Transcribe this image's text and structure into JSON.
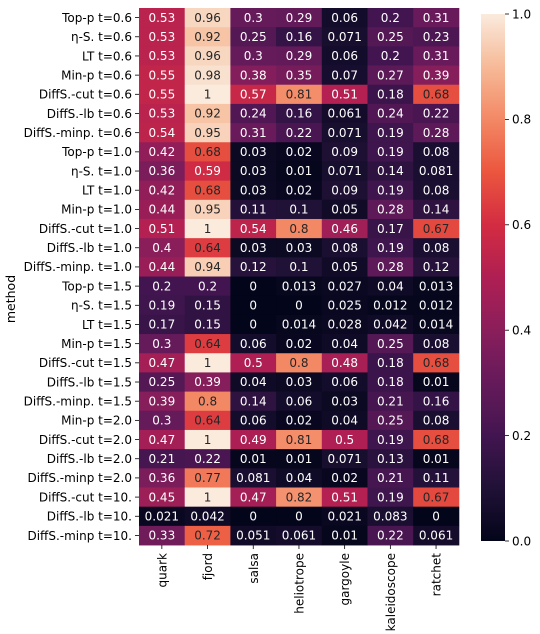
{
  "chart_data": {
    "type": "heatmap",
    "title": "",
    "xlabel": "",
    "ylabel": "method",
    "rows": [
      "Top-p t=0.6",
      "η-S. t=0.6",
      "LT t=0.6",
      "Min-p t=0.6",
      "DiffS.-cut t=0.6",
      "DiffS.-lb t=0.6",
      "DiffS.-minp. t=0.6",
      "Top-p t=1.0",
      "η-S. t=1.0",
      "LT t=1.0",
      "Min-p t=1.0",
      "DiffS.-cut t=1.0",
      "DiffS.-lb t=1.0",
      "DiffS.-minp. t=1.0",
      "Top-p t=1.5",
      "η-S. t=1.5",
      "LT t=1.5",
      "Min-p t=1.5",
      "DiffS.-cut t=1.5",
      "DiffS.-lb t=1.5",
      "DiffS.-minp. t=1.5",
      "Min-p t=2.0",
      "DiffS.-cut t=2.0",
      "DiffS.-lb t=2.0",
      "DiffS.-minp t=2.0",
      "DiffS.-cut t=10.",
      "DiffS.-lb t=10.",
      "DiffS.-minp t=10."
    ],
    "columns": [
      "quark",
      "fjord",
      "salsa",
      "heliotrope",
      "gargoyle",
      "kaleidoscope",
      "ratchet"
    ],
    "values": [
      [
        0.53,
        0.96,
        0.3,
        0.29,
        0.06,
        0.2,
        0.31
      ],
      [
        0.53,
        0.92,
        0.25,
        0.16,
        0.071,
        0.25,
        0.23
      ],
      [
        0.53,
        0.96,
        0.3,
        0.29,
        0.06,
        0.2,
        0.31
      ],
      [
        0.55,
        0.98,
        0.38,
        0.35,
        0.07,
        0.27,
        0.39
      ],
      [
        0.55,
        1,
        0.57,
        0.81,
        0.51,
        0.18,
        0.68
      ],
      [
        0.53,
        0.92,
        0.24,
        0.16,
        0.061,
        0.24,
        0.22
      ],
      [
        0.54,
        0.95,
        0.31,
        0.22,
        0.071,
        0.19,
        0.28
      ],
      [
        0.42,
        0.68,
        0.03,
        0.02,
        0.09,
        0.19,
        0.08
      ],
      [
        0.36,
        0.59,
        0.03,
        0.01,
        0.071,
        0.14,
        0.081
      ],
      [
        0.42,
        0.68,
        0.03,
        0.02,
        0.09,
        0.19,
        0.08
      ],
      [
        0.44,
        0.95,
        0.11,
        0.1,
        0.05,
        0.28,
        0.14
      ],
      [
        0.51,
        1,
        0.54,
        0.8,
        0.46,
        0.17,
        0.67
      ],
      [
        0.4,
        0.64,
        0.03,
        0.03,
        0.08,
        0.19,
        0.08
      ],
      [
        0.44,
        0.94,
        0.12,
        0.1,
        0.05,
        0.28,
        0.12
      ],
      [
        0.2,
        0.2,
        0,
        0.013,
        0.027,
        0.04,
        0.013
      ],
      [
        0.19,
        0.15,
        0,
        0,
        0.025,
        0.012,
        0.012
      ],
      [
        0.17,
        0.15,
        0,
        0.014,
        0.028,
        0.042,
        0.014
      ],
      [
        0.3,
        0.64,
        0.06,
        0.02,
        0.04,
        0.25,
        0.08
      ],
      [
        0.47,
        1,
        0.5,
        0.8,
        0.48,
        0.18,
        0.68
      ],
      [
        0.25,
        0.39,
        0.04,
        0.03,
        0.06,
        0.18,
        0.01
      ],
      [
        0.39,
        0.8,
        0.14,
        0.06,
        0.03,
        0.21,
        0.16
      ],
      [
        0.3,
        0.64,
        0.06,
        0.02,
        0.04,
        0.25,
        0.08
      ],
      [
        0.47,
        1,
        0.49,
        0.81,
        0.5,
        0.19,
        0.68
      ],
      [
        0.21,
        0.22,
        0.01,
        0.01,
        0.071,
        0.13,
        0.01
      ],
      [
        0.36,
        0.77,
        0.081,
        0.04,
        0.02,
        0.21,
        0.11
      ],
      [
        0.45,
        1,
        0.47,
        0.82,
        0.51,
        0.19,
        0.67
      ],
      [
        0.021,
        0.042,
        0,
        0,
        0.021,
        0.083,
        0
      ],
      [
        0.33,
        0.72,
        0.051,
        0.061,
        0.01,
        0.22,
        0.061
      ]
    ],
    "labels": [
      [
        "0.53",
        "0.96",
        "0.3",
        "0.29",
        "0.06",
        "0.2",
        "0.31"
      ],
      [
        "0.53",
        "0.92",
        "0.25",
        "0.16",
        "0.071",
        "0.25",
        "0.23"
      ],
      [
        "0.53",
        "0.96",
        "0.3",
        "0.29",
        "0.06",
        "0.2",
        "0.31"
      ],
      [
        "0.55",
        "0.98",
        "0.38",
        "0.35",
        "0.07",
        "0.27",
        "0.39"
      ],
      [
        "0.55",
        "1",
        "0.57",
        "0.81",
        "0.51",
        "0.18",
        "0.68"
      ],
      [
        "0.53",
        "0.92",
        "0.24",
        "0.16",
        "0.061",
        "0.24",
        "0.22"
      ],
      [
        "0.54",
        "0.95",
        "0.31",
        "0.22",
        "0.071",
        "0.19",
        "0.28"
      ],
      [
        "0.42",
        "0.68",
        "0.03",
        "0.02",
        "0.09",
        "0.19",
        "0.08"
      ],
      [
        "0.36",
        "0.59",
        "0.03",
        "0.01",
        "0.071",
        "0.14",
        "0.081"
      ],
      [
        "0.42",
        "0.68",
        "0.03",
        "0.02",
        "0.09",
        "0.19",
        "0.08"
      ],
      [
        "0.44",
        "0.95",
        "0.11",
        "0.1",
        "0.05",
        "0.28",
        "0.14"
      ],
      [
        "0.51",
        "1",
        "0.54",
        "0.8",
        "0.46",
        "0.17",
        "0.67"
      ],
      [
        "0.4",
        "0.64",
        "0.03",
        "0.03",
        "0.08",
        "0.19",
        "0.08"
      ],
      [
        "0.44",
        "0.94",
        "0.12",
        "0.1",
        "0.05",
        "0.28",
        "0.12"
      ],
      [
        "0.2",
        "0.2",
        "0",
        "0.013",
        "0.027",
        "0.04",
        "0.013"
      ],
      [
        "0.19",
        "0.15",
        "0",
        "0",
        "0.025",
        "0.012",
        "0.012"
      ],
      [
        "0.17",
        "0.15",
        "0",
        "0.014",
        "0.028",
        "0.042",
        "0.014"
      ],
      [
        "0.3",
        "0.64",
        "0.06",
        "0.02",
        "0.04",
        "0.25",
        "0.08"
      ],
      [
        "0.47",
        "1",
        "0.5",
        "0.8",
        "0.48",
        "0.18",
        "0.68"
      ],
      [
        "0.25",
        "0.39",
        "0.04",
        "0.03",
        "0.06",
        "0.18",
        "0.01"
      ],
      [
        "0.39",
        "0.8",
        "0.14",
        "0.06",
        "0.03",
        "0.21",
        "0.16"
      ],
      [
        "0.3",
        "0.64",
        "0.06",
        "0.02",
        "0.04",
        "0.25",
        "0.08"
      ],
      [
        "0.47",
        "1",
        "0.49",
        "0.81",
        "0.5",
        "0.19",
        "0.68"
      ],
      [
        "0.21",
        "0.22",
        "0.01",
        "0.01",
        "0.071",
        "0.13",
        "0.01"
      ],
      [
        "0.36",
        "0.77",
        "0.081",
        "0.04",
        "0.02",
        "0.21",
        "0.11"
      ],
      [
        "0.45",
        "1",
        "0.47",
        "0.82",
        "0.51",
        "0.19",
        "0.67"
      ],
      [
        "0.021",
        "0.042",
        "0",
        "0",
        "0.021",
        "0.083",
        "0"
      ],
      [
        "0.33",
        "0.72",
        "0.051",
        "0.061",
        "0.01",
        "0.22",
        "0.061"
      ]
    ],
    "colorbar": {
      "colormap": "rocket",
      "range": [
        0,
        1
      ],
      "ticks": [
        "0.0",
        "0.2",
        "0.4",
        "0.6",
        "0.8",
        "1.0"
      ]
    },
    "grid": false,
    "legend": "colorbar right"
  }
}
